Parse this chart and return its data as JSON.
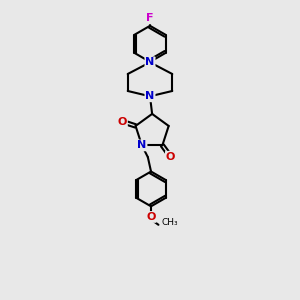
{
  "bg_color": "#e8e8e8",
  "bond_color": "#000000",
  "N_color": "#0000cc",
  "O_color": "#cc0000",
  "F_color": "#cc00cc",
  "line_width": 1.5,
  "figsize": [
    3.0,
    3.0
  ],
  "dpi": 100,
  "xlim": [
    0,
    10
  ],
  "ylim": [
    0,
    14
  ]
}
